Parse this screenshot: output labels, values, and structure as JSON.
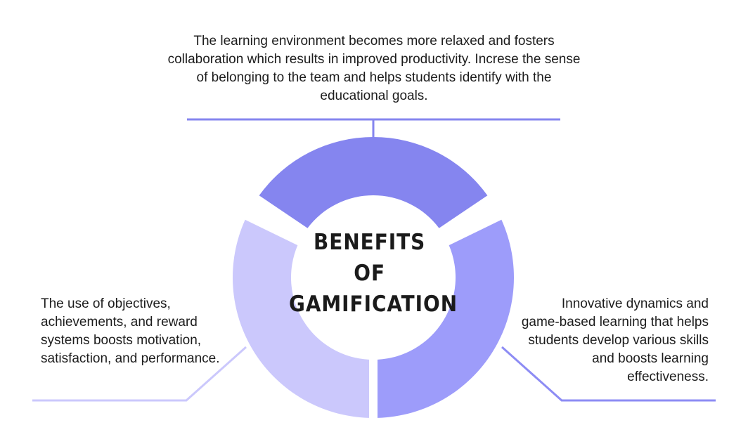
{
  "center": {
    "line1": "BENEFITS",
    "line2": "OF",
    "line3": "GAMIFICATION"
  },
  "benefits": {
    "top": "The learning environment becomes more relaxed and fosters collaboration which results in improved productivity. Increse the sense of belonging to the team and helps students identify with the educational goals.",
    "left": "The use of objectives, achievements, and reward systems boosts motivation, satisfaction, and performance.",
    "right": "Innovative dynamics and game-based learning that helps students develop various skills and boosts learning effectiveness."
  },
  "colors": {
    "top_segment": "#8585ef",
    "right_segment": "#9d9cfa",
    "left_segment": "#cbc8fc",
    "top_line": "#8585ef",
    "right_line": "#8d8cf4",
    "left_line": "#cbc8fc"
  }
}
